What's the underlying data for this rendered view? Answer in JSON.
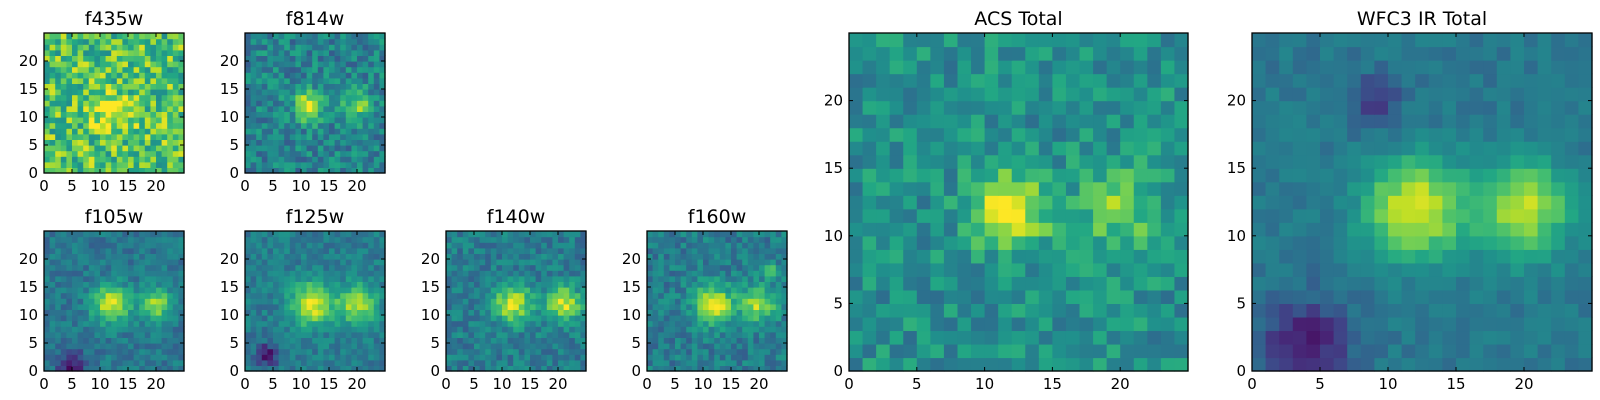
{
  "chart_data": {
    "type": "heatmap",
    "colormap": "viridis",
    "grid": false,
    "panels": [
      {
        "key": "f435w",
        "title": "f435w",
        "xlim": [
          0,
          25
        ],
        "ylim": [
          0,
          25
        ],
        "xticks": [
          "0",
          "5",
          "10",
          "15",
          "20"
        ],
        "yticks": [
          "0",
          "5",
          "10",
          "15",
          "20"
        ],
        "background_level": 0.72,
        "noise": 0.24,
        "pixel_block": 1,
        "seed": 11,
        "sources": [
          {
            "x": 12,
            "y": 11,
            "peak": 0.3,
            "width": 2.5
          }
        ]
      },
      {
        "key": "f814w",
        "title": "f814w",
        "xlim": [
          0,
          25
        ],
        "ylim": [
          0,
          25
        ],
        "xticks": [
          "0",
          "5",
          "10",
          "15",
          "20"
        ],
        "yticks": [
          "0",
          "5",
          "10",
          "15",
          "20"
        ],
        "background_level": 0.45,
        "noise": 0.16,
        "pixel_block": 1,
        "seed": 23,
        "sources": [
          {
            "x": 11.5,
            "y": 12,
            "peak": 0.55,
            "width": 1.8
          },
          {
            "x": 20,
            "y": 12,
            "peak": 0.35,
            "width": 1.8
          }
        ]
      },
      {
        "key": "f105w",
        "title": "f105w",
        "xlim": [
          0,
          25
        ],
        "ylim": [
          0,
          25
        ],
        "xticks": [
          "0",
          "5",
          "10",
          "15",
          "20"
        ],
        "yticks": [
          "0",
          "5",
          "10",
          "15",
          "20"
        ],
        "background_level": 0.4,
        "noise": 0.1,
        "pixel_block": 1,
        "seed": 37,
        "sources": [
          {
            "x": 12,
            "y": 12,
            "peak": 0.55,
            "width": 2.3
          },
          {
            "x": 20,
            "y": 12,
            "peak": 0.45,
            "width": 2.0
          },
          {
            "x": 5,
            "y": 1,
            "peak": -0.35,
            "width": 1.8
          }
        ]
      },
      {
        "key": "f125w",
        "title": "f125w",
        "xlim": [
          0,
          25
        ],
        "ylim": [
          0,
          25
        ],
        "xticks": [
          "0",
          "5",
          "10",
          "15",
          "20"
        ],
        "yticks": [
          "0",
          "5",
          "10",
          "15",
          "20"
        ],
        "background_level": 0.42,
        "noise": 0.1,
        "pixel_block": 1,
        "seed": 41,
        "sources": [
          {
            "x": 12,
            "y": 12,
            "peak": 0.55,
            "width": 2.6
          },
          {
            "x": 20,
            "y": 12,
            "peak": 0.45,
            "width": 2.4
          },
          {
            "x": 4,
            "y": 3,
            "peak": -0.35,
            "width": 1.5
          }
        ]
      },
      {
        "key": "f140w",
        "title": "f140w",
        "xlim": [
          0,
          25
        ],
        "ylim": [
          0,
          25
        ],
        "xticks": [
          "0",
          "5",
          "10",
          "15",
          "20"
        ],
        "yticks": [
          "0",
          "5",
          "10",
          "15",
          "20"
        ],
        "background_level": 0.42,
        "noise": 0.12,
        "pixel_block": 1,
        "seed": 53,
        "sources": [
          {
            "x": 12,
            "y": 12,
            "peak": 0.5,
            "width": 2.4
          },
          {
            "x": 21,
            "y": 12,
            "peak": 0.5,
            "width": 2.2
          }
        ]
      },
      {
        "key": "f160w",
        "title": "f160w",
        "xlim": [
          0,
          25
        ],
        "ylim": [
          0,
          25
        ],
        "xticks": [
          "0",
          "5",
          "10",
          "15",
          "20"
        ],
        "yticks": [
          "0",
          "5",
          "10",
          "15",
          "20"
        ],
        "background_level": 0.42,
        "noise": 0.12,
        "pixel_block": 1,
        "seed": 67,
        "sources": [
          {
            "x": 12,
            "y": 12,
            "peak": 0.55,
            "width": 2.4
          },
          {
            "x": 20,
            "y": 12,
            "peak": 0.45,
            "width": 2.2
          },
          {
            "x": 22,
            "y": 18,
            "peak": 0.35,
            "width": 0.9
          }
        ]
      },
      {
        "key": "acs_total",
        "title": "ACS Total",
        "xlim": [
          0,
          25
        ],
        "ylim": [
          0,
          25
        ],
        "xticks": [
          "0",
          "5",
          "10",
          "15",
          "20"
        ],
        "yticks": [
          "0",
          "5",
          "10",
          "15",
          "20"
        ],
        "background_level": 0.5,
        "noise": 0.14,
        "pixel_block": 1,
        "seed": 79,
        "sources": [
          {
            "x": 12,
            "y": 12,
            "peak": 0.5,
            "width": 2.0
          },
          {
            "x": 20,
            "y": 12,
            "peak": 0.3,
            "width": 2.0
          }
        ]
      },
      {
        "key": "wfc3_ir_total",
        "title": "WFC3 IR Total",
        "xlim": [
          0,
          25
        ],
        "ylim": [
          0,
          25
        ],
        "xticks": [
          "0",
          "5",
          "10",
          "15",
          "20"
        ],
        "yticks": [
          "0",
          "5",
          "10",
          "15",
          "20"
        ],
        "background_level": 0.4,
        "noise": 0.06,
        "pixel_block": 1,
        "seed": 83,
        "sources": [
          {
            "x": 12,
            "y": 12,
            "peak": 0.55,
            "width": 2.6
          },
          {
            "x": 20,
            "y": 12,
            "peak": 0.5,
            "width": 2.4
          },
          {
            "x": 4,
            "y": 2,
            "peak": -0.35,
            "width": 2.2
          },
          {
            "x": 9,
            "y": 20,
            "peak": -0.25,
            "width": 1.3
          }
        ]
      }
    ]
  }
}
